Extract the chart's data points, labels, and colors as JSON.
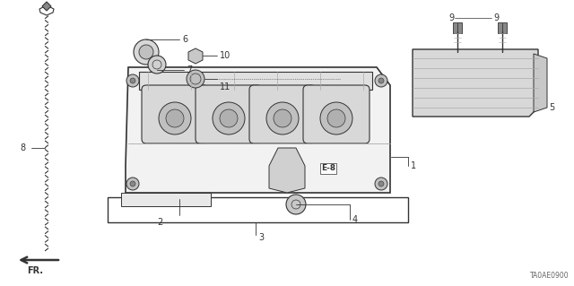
{
  "bg_color": "#ffffff",
  "diagram_code": "TA0AE0900",
  "line_color": "#333333",
  "text_color": "#333333",
  "mid_gray": "#aaaaaa",
  "light_gray": "#e0e0e0",
  "dark_gray": "#888888"
}
